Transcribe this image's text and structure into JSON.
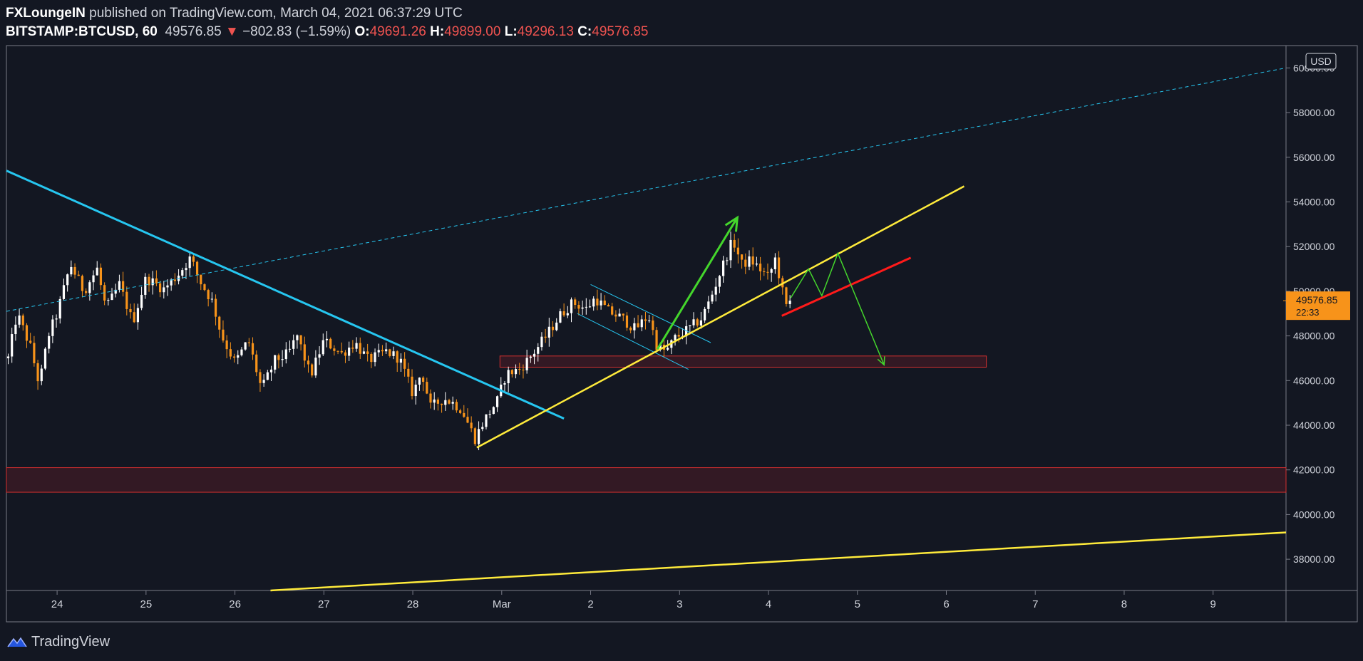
{
  "header": {
    "author": "FXLoungeIN",
    "published_text": "published on TradingView.com, March 04, 2021 06:37:29 UTC",
    "symbol": "BITSTAMP:BTCUSD, 60",
    "last_price": "49576.85",
    "change_arrow": "▼",
    "change": "−802.83 (−1.59%)",
    "open_label": "O:",
    "open": "49691.26",
    "high_label": "H:",
    "high": "49899.00",
    "low_label": "L:",
    "low": "49296.13",
    "close_label": "C:",
    "close": "49576.85"
  },
  "footer": {
    "brand": "TradingView"
  },
  "colors": {
    "background": "#131722",
    "up_candle": "#ffffff",
    "down_candle": "#f7931a",
    "cyan_trendline": "#26c6f0",
    "yellow_trendline": "#ffeb3b",
    "red_trendline": "#ff1a1a",
    "green_arrow": "#44d62c",
    "zone_fill": "#3a1a24",
    "zone_border": "#d32f2f",
    "price_tag": "#f7931a"
  },
  "chart_data": {
    "type": "candlestick",
    "currency_label": "USD",
    "y_ticks": [
      "60000.00",
      "58000.00",
      "56000.00",
      "54000.00",
      "52000.00",
      "50000.00",
      "48000.00",
      "46000.00",
      "44000.00",
      "42000.00",
      "40000.00",
      "38000.00"
    ],
    "ylim": [
      36600,
      61000
    ],
    "x_ticks": [
      {
        "label": "24",
        "d": 0
      },
      {
        "label": "25",
        "d": 1
      },
      {
        "label": "26",
        "d": 2
      },
      {
        "label": "27",
        "d": 3
      },
      {
        "label": "28",
        "d": 4
      },
      {
        "label": "Mar",
        "d": 5
      },
      {
        "label": "2",
        "d": 6
      },
      {
        "label": "3",
        "d": 7
      },
      {
        "label": "4",
        "d": 8
      },
      {
        "label": "5",
        "d": 9
      },
      {
        "label": "6",
        "d": 10
      },
      {
        "label": "7",
        "d": 11
      },
      {
        "label": "8",
        "d": 12
      },
      {
        "label": "9",
        "d": 13
      }
    ],
    "xlim": [
      -0.57,
      13.82
    ],
    "price_tag": {
      "price": "49576.85",
      "countdown": "22:33",
      "value": 49576.85
    },
    "anchors": [
      [
        -0.55,
        47000
      ],
      [
        -0.45,
        49000
      ],
      [
        -0.3,
        47500
      ],
      [
        -0.2,
        45800
      ],
      [
        -0.1,
        48000
      ],
      [
        0.0,
        49000
      ],
      [
        0.15,
        51200
      ],
      [
        0.3,
        50000
      ],
      [
        0.45,
        51000
      ],
      [
        0.55,
        49200
      ],
      [
        0.7,
        50300
      ],
      [
        0.85,
        48600
      ],
      [
        1.0,
        50600
      ],
      [
        1.2,
        50100
      ],
      [
        1.35,
        50700
      ],
      [
        1.5,
        51500
      ],
      [
        1.6,
        50500
      ],
      [
        1.75,
        49500
      ],
      [
        1.85,
        48000
      ],
      [
        2.0,
        46800
      ],
      [
        2.15,
        47800
      ],
      [
        2.3,
        45600
      ],
      [
        2.45,
        46900
      ],
      [
        2.6,
        47200
      ],
      [
        2.7,
        48000
      ],
      [
        2.85,
        46200
      ],
      [
        3.0,
        47800
      ],
      [
        3.2,
        47200
      ],
      [
        3.35,
        47700
      ],
      [
        3.5,
        46900
      ],
      [
        3.7,
        47300
      ],
      [
        3.85,
        47000
      ],
      [
        4.0,
        45400
      ],
      [
        4.1,
        46400
      ],
      [
        4.2,
        44800
      ],
      [
        4.35,
        45200
      ],
      [
        4.45,
        45000
      ],
      [
        4.55,
        44700
      ],
      [
        4.7,
        43400
      ],
      [
        4.8,
        44200
      ],
      [
        4.95,
        45100
      ],
      [
        5.05,
        46300
      ],
      [
        5.2,
        46500
      ],
      [
        5.35,
        47200
      ],
      [
        5.5,
        48000
      ],
      [
        5.65,
        48900
      ],
      [
        5.8,
        49500
      ],
      [
        5.95,
        49200
      ],
      [
        6.05,
        49700
      ],
      [
        6.2,
        49100
      ],
      [
        6.35,
        48800
      ],
      [
        6.5,
        48300
      ],
      [
        6.65,
        48900
      ],
      [
        6.75,
        47500
      ],
      [
        6.85,
        47300
      ],
      [
        6.95,
        47900
      ],
      [
        7.1,
        48300
      ],
      [
        7.25,
        48800
      ],
      [
        7.35,
        49700
      ],
      [
        7.5,
        51300
      ],
      [
        7.6,
        52300
      ],
      [
        7.7,
        51200
      ],
      [
        7.8,
        51400
      ],
      [
        7.9,
        51000
      ],
      [
        8.0,
        50600
      ],
      [
        8.08,
        51500
      ],
      [
        8.15,
        50100
      ],
      [
        8.2,
        49300
      ],
      [
        8.25,
        49577
      ]
    ],
    "drawings": {
      "cyan_trendline": {
        "from": [
          -0.57,
          55400
        ],
        "to": [
          5.7,
          44300
        ]
      },
      "cyan_dashed_line": {
        "from": [
          -0.57,
          49100
        ],
        "to": [
          13.82,
          60000
        ]
      },
      "yellow_support": {
        "from": [
          4.72,
          43000
        ],
        "to": [
          10.2,
          54700
        ]
      },
      "yellow_long_line": {
        "from": [
          2.4,
          36600
        ],
        "to": [
          13.82,
          39200
        ]
      },
      "red_resistance": {
        "from": [
          8.15,
          48900
        ],
        "to": [
          9.6,
          51500
        ]
      },
      "support_zone_upper": {
        "from": [
          4.98,
          47100
        ],
        "to": [
          10.45,
          46600
        ]
      },
      "support_zone_lower": {
        "from": [
          -0.57,
          42100
        ],
        "to": [
          13.82,
          41000
        ]
      },
      "channel_upper": {
        "from": [
          6.0,
          50300
        ],
        "to": [
          7.35,
          47700
        ]
      },
      "channel_lower": {
        "from": [
          5.85,
          49000
        ],
        "to": [
          7.1,
          46500
        ]
      },
      "green_arrow_up": {
        "from": [
          6.75,
          47400
        ],
        "to": [
          7.65,
          53300
        ]
      },
      "green_projection": [
        [
          8.25,
          49700
        ],
        [
          8.45,
          51000
        ],
        [
          8.6,
          49800
        ],
        [
          8.78,
          51700
        ],
        [
          9.3,
          46700
        ]
      ]
    }
  }
}
